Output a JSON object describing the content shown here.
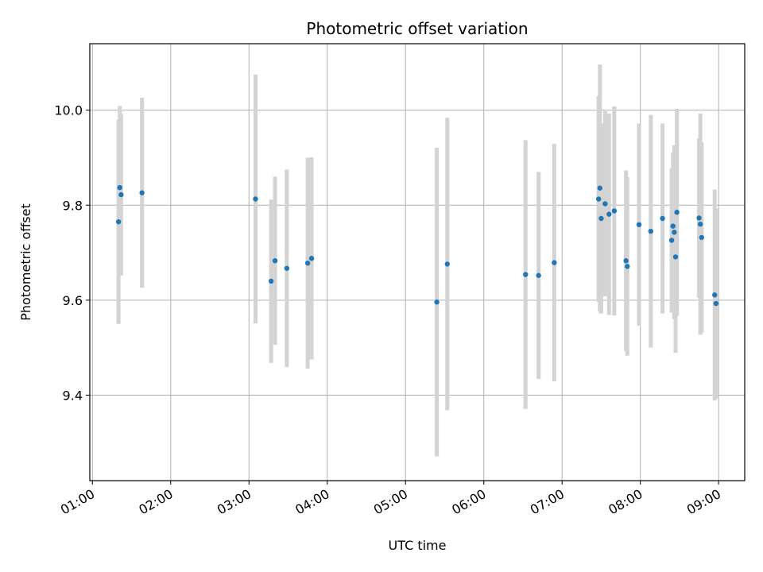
{
  "chart_data": {
    "type": "scatter",
    "title": "Photometric offset variation",
    "xlabel": "UTC time",
    "ylabel": "Photometric offset",
    "x_ticks": [
      "01:00",
      "02:00",
      "03:00",
      "04:00",
      "05:00",
      "06:00",
      "07:00",
      "08:00",
      "09:00"
    ],
    "y_ticks": [
      "9.4",
      "9.6",
      "9.8",
      "10.0"
    ],
    "xlim": [
      "00:58",
      "09:20"
    ],
    "ylim": [
      9.22,
      10.14
    ],
    "grid": true,
    "x_tick_label_rotation": "30-degree",
    "colors": {
      "point": "#1f77b4",
      "errorbar": "#d3d3d3",
      "grid": "#b0b0b0"
    },
    "points": [
      {
        "t": "01:20",
        "y": 9.765,
        "err": 0.215
      },
      {
        "t": "01:21",
        "y": 9.837,
        "err": 0.172
      },
      {
        "t": "01:22",
        "y": 9.822,
        "err": 0.17
      },
      {
        "t": "01:38",
        "y": 9.826,
        "err": 0.2
      },
      {
        "t": "03:05",
        "y": 9.813,
        "err": 0.262
      },
      {
        "t": "03:17",
        "y": 9.64,
        "err": 0.172
      },
      {
        "t": "03:20",
        "y": 9.683,
        "err": 0.177
      },
      {
        "t": "03:29",
        "y": 9.667,
        "err": 0.208
      },
      {
        "t": "03:45",
        "y": 9.678,
        "err": 0.222
      },
      {
        "t": "03:48",
        "y": 9.688,
        "err": 0.213
      },
      {
        "t": "05:24",
        "y": 9.596,
        "err": 0.325
      },
      {
        "t": "05:32",
        "y": 9.676,
        "err": 0.308
      },
      {
        "t": "06:32",
        "y": 9.654,
        "err": 0.283
      },
      {
        "t": "06:42",
        "y": 9.652,
        "err": 0.218
      },
      {
        "t": "06:54",
        "y": 9.679,
        "err": 0.25
      },
      {
        "t": "07:28",
        "y": 9.813,
        "err": 0.217
      },
      {
        "t": "07:29",
        "y": 9.836,
        "err": 0.26
      },
      {
        "t": "07:30",
        "y": 9.772,
        "err": 0.2
      },
      {
        "t": "07:33",
        "y": 9.803,
        "err": 0.195
      },
      {
        "t": "07:36",
        "y": 9.781,
        "err": 0.212
      },
      {
        "t": "07:40",
        "y": 9.788,
        "err": 0.22
      },
      {
        "t": "07:49",
        "y": 9.683,
        "err": 0.19
      },
      {
        "t": "07:50",
        "y": 9.671,
        "err": 0.188
      },
      {
        "t": "07:59",
        "y": 9.759,
        "err": 0.213
      },
      {
        "t": "08:08",
        "y": 9.745,
        "err": 0.245
      },
      {
        "t": "08:17",
        "y": 9.772,
        "err": 0.2
      },
      {
        "t": "08:24",
        "y": 9.726,
        "err": 0.152
      },
      {
        "t": "08:25",
        "y": 9.756,
        "err": 0.155
      },
      {
        "t": "08:26",
        "y": 9.743,
        "err": 0.183
      },
      {
        "t": "08:27",
        "y": 9.691,
        "err": 0.202
      },
      {
        "t": "08:28",
        "y": 9.785,
        "err": 0.218
      },
      {
        "t": "08:45",
        "y": 9.773,
        "err": 0.168
      },
      {
        "t": "08:46",
        "y": 9.76,
        "err": 0.233
      },
      {
        "t": "08:47",
        "y": 9.732,
        "err": 0.2
      },
      {
        "t": "08:57",
        "y": 9.611,
        "err": 0.222
      },
      {
        "t": "08:58",
        "y": 9.593,
        "err": 0.2
      }
    ]
  }
}
